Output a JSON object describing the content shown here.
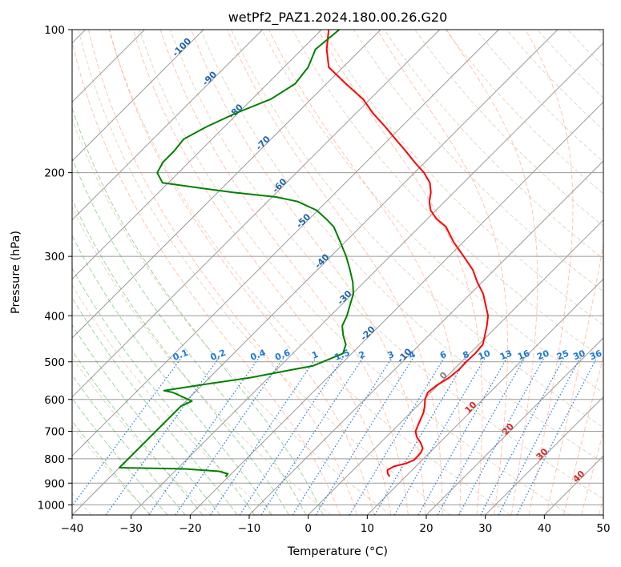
{
  "chart_data": {
    "type": "line",
    "title": "wetPf2_PAZ1.2024.180.00.26.G20",
    "xlabel": "Temperature (°C)",
    "ylabel": "Pressure (hPa)",
    "xlim": [
      -40,
      50
    ],
    "ylim": [
      1050,
      100
    ],
    "y_scale": "log",
    "grid": true,
    "x_ticks": [
      -40,
      -30,
      -20,
      -10,
      0,
      10,
      20,
      30,
      40,
      50
    ],
    "y_ticks": [
      100,
      200,
      300,
      400,
      500,
      600,
      700,
      800,
      900,
      1000
    ],
    "series": [
      {
        "role": "temperature",
        "color": "#ff0000",
        "points": [
          [
            872,
            7.3
          ],
          [
            860,
            6.5
          ],
          [
            845,
            5.8
          ],
          [
            830,
            6.3
          ],
          [
            818,
            7.8
          ],
          [
            805,
            8.6
          ],
          [
            790,
            8.6
          ],
          [
            775,
            8.5
          ],
          [
            760,
            8.1
          ],
          [
            740,
            6.8
          ],
          [
            720,
            5.2
          ],
          [
            700,
            4.0
          ],
          [
            680,
            3.4
          ],
          [
            660,
            2.8
          ],
          [
            640,
            2.2
          ],
          [
            620,
            1.3
          ],
          [
            600,
            0.2
          ],
          [
            580,
            -0.5
          ],
          [
            560,
            -0.2
          ],
          [
            540,
            0.6
          ],
          [
            520,
            0.9
          ],
          [
            500,
            0.8
          ],
          [
            480,
            0.9
          ],
          [
            460,
            0.7
          ],
          [
            440,
            -0.5
          ],
          [
            420,
            -1.8
          ],
          [
            400,
            -3.3
          ],
          [
            380,
            -5.5
          ],
          [
            360,
            -7.8
          ],
          [
            340,
            -10.8
          ],
          [
            320,
            -13.7
          ],
          [
            300,
            -17.5
          ],
          [
            280,
            -21.6
          ],
          [
            260,
            -25.5
          ],
          [
            250,
            -28.5
          ],
          [
            240,
            -30.9
          ],
          [
            230,
            -32.6
          ],
          [
            220,
            -33.9
          ],
          [
            210,
            -35.7
          ],
          [
            200,
            -38.4
          ],
          [
            190,
            -41.8
          ],
          [
            180,
            -45.2
          ],
          [
            170,
            -48.9
          ],
          [
            160,
            -52.8
          ],
          [
            150,
            -57.1
          ],
          [
            140,
            -61.2
          ],
          [
            130,
            -66.7
          ],
          [
            120,
            -72.4
          ],
          [
            110,
            -75.8
          ],
          [
            100,
            -78.8
          ]
        ]
      },
      {
        "role": "dewpoint",
        "color": "#008000",
        "points": [
          [
            872,
            -20.5
          ],
          [
            860,
            -20.6
          ],
          [
            850,
            -22.5
          ],
          [
            840,
            -28.7
          ],
          [
            835,
            -40
          ],
          [
            620,
            -40
          ],
          [
            605,
            -39
          ],
          [
            580,
            -43.7
          ],
          [
            575,
            -45.5
          ],
          [
            560,
            -40.5
          ],
          [
            540,
            -33.1
          ],
          [
            520,
            -27.5
          ],
          [
            510,
            -24.5
          ],
          [
            500,
            -23.5
          ],
          [
            480,
            -21.5
          ],
          [
            460,
            -22.5
          ],
          [
            440,
            -24.5
          ],
          [
            420,
            -26.3
          ],
          [
            400,
            -27.2
          ],
          [
            380,
            -28.5
          ],
          [
            360,
            -29.8
          ],
          [
            340,
            -31.9
          ],
          [
            320,
            -34.5
          ],
          [
            300,
            -37.4
          ],
          [
            280,
            -40.8
          ],
          [
            260,
            -44.5
          ],
          [
            250,
            -47.2
          ],
          [
            240,
            -50.2
          ],
          [
            230,
            -54.9
          ],
          [
            225,
            -59.3
          ],
          [
            220,
            -67.4
          ],
          [
            215,
            -74.3
          ],
          [
            210,
            -81.0
          ],
          [
            200,
            -83.6
          ],
          [
            190,
            -84.4
          ],
          [
            180,
            -84.4
          ],
          [
            170,
            -84.8
          ],
          [
            160,
            -83.0
          ],
          [
            150,
            -80.4
          ],
          [
            140,
            -76.8
          ],
          [
            130,
            -75.3
          ],
          [
            120,
            -75.9
          ],
          [
            110,
            -77.7
          ],
          [
            100,
            -77.0
          ]
        ]
      }
    ],
    "dry_adiabat_labels": [
      "-100",
      "-90",
      "-80",
      "-70",
      "-60",
      "-50",
      "-40",
      "-30",
      "-20",
      "-10"
    ],
    "mixing_ratio_labels": [
      "0.1",
      "0.2",
      "0.4",
      "0.6",
      "1",
      "1.5",
      "2",
      "3",
      "4",
      "6",
      "8",
      "10",
      "13",
      "16",
      "20",
      "25",
      "30",
      "36"
    ],
    "moist_adiabat_labels": [
      "0",
      "10",
      "20",
      "30",
      "40"
    ],
    "colors": {
      "isotherm": "#9a9a9a",
      "isobar": "#9a9a9a",
      "dry_adiabat": "#d2b48c",
      "moist_adiabat_cold": "#2ca02c",
      "moist_adiabat_warm": "#ff7f50",
      "mixing_ratio": "#1e78d6",
      "dry_adiabat_label": "#2166ac",
      "moist_label_warm": "#d62728",
      "moist_label_zero": "#7f7f7f"
    }
  }
}
